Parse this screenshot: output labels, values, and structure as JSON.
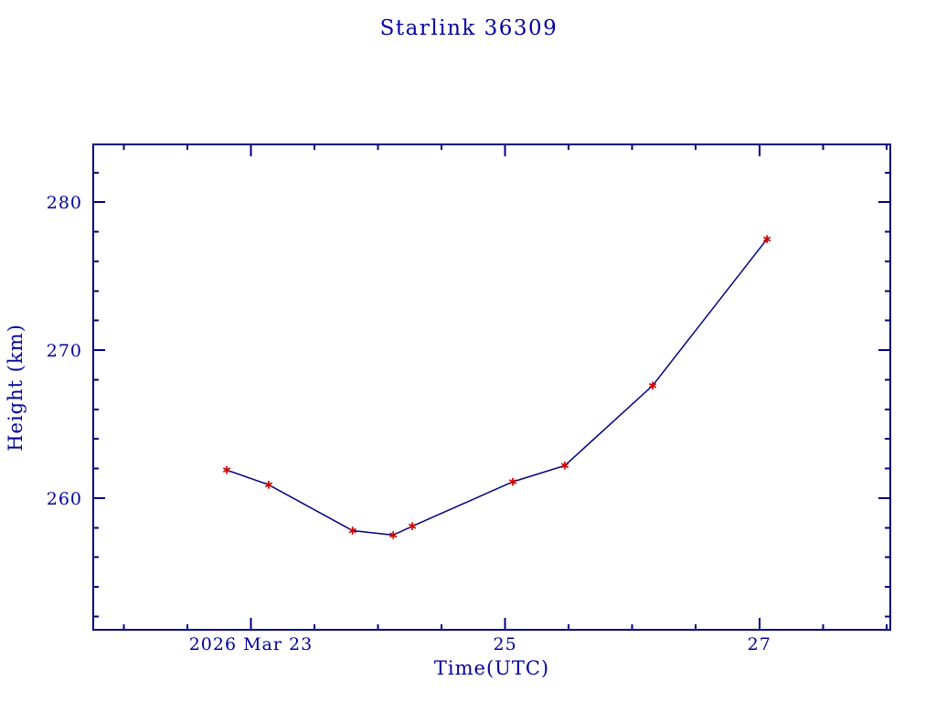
{
  "colors": {
    "text": "#0000a0",
    "axis": "#000080",
    "line": "#000080",
    "marker": "#cc0000",
    "background": "#ffffff"
  },
  "chart_data": {
    "type": "line",
    "title": "Starlink 36309",
    "xlabel": "Time(UTC)",
    "ylabel": "Height (km)",
    "x_axis_note": "x values are day-of-month decimals for 2026 March (UTC)",
    "xlim": [
      21.76,
      28.03
    ],
    "ylim": [
      251.1,
      283.9
    ],
    "x": [
      22.81,
      23.14,
      23.8,
      24.12,
      24.27,
      25.06,
      25.47,
      26.16,
      27.06
    ],
    "y": [
      261.9,
      260.9,
      257.8,
      257.5,
      258.1,
      261.1,
      262.2,
      267.6,
      277.5
    ],
    "marker": "asterisk",
    "grid": false,
    "legend": false,
    "x_major_ticks": [
      {
        "value": 23,
        "label": "2026 Mar 23"
      },
      {
        "value": 25,
        "label": "25"
      },
      {
        "value": 27,
        "label": "27"
      }
    ],
    "x_minor_step": 0.5,
    "y_major_ticks": [
      {
        "value": 260,
        "label": "260"
      },
      {
        "value": 270,
        "label": "270"
      },
      {
        "value": 280,
        "label": "280"
      }
    ],
    "y_minor_step": 2
  }
}
